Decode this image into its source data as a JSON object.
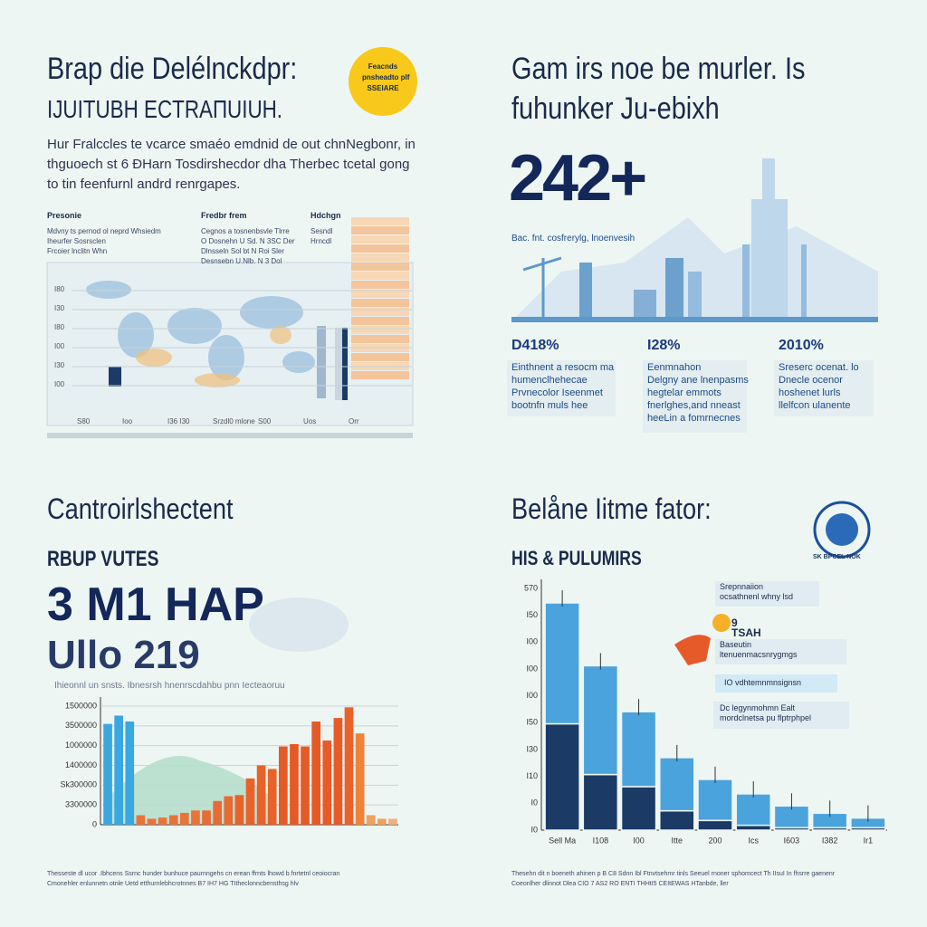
{
  "top_left": {
    "title": "Brap die Delélnckdpr:",
    "subtitle": "IJUITUBH ECTRAПUIUH.",
    "body": [
      "Hur Fralccles te vcarce smaéo emdnid de out chnNegbonr, in",
      "thguoech st 6 ÐHarn Tosdirshecdor dha Therbec tcetal gong",
      "to tin feenfurnl andrd renrgapes."
    ],
    "badge": [
      "Feacnds",
      "pnsheadto plf",
      "SSEIARE"
    ],
    "columns": [
      "Presonie",
      "Fredbr frem",
      "Hdchgn"
    ],
    "notes": [
      "Mdvny ts pernod ol neprd Whsiedm",
      "Iheurfer Sosrsclen",
      "Frcoier lnclitn Whn"
    ],
    "notes2": [
      "Cegnos a tosnenbsvle Tlrre",
      "O Dosnehn U Sd. N 3SC Der",
      "Dlnsseln Sol bt N Roi Sler",
      "Desnsebn U.Nlb. N 3 Dol"
    ],
    "notes3": [
      "Sesndl",
      "Hrncdl"
    ],
    "yticks": [
      "I80",
      "I30",
      "I80",
      "I00",
      "I30",
      "I00"
    ],
    "xticks": [
      "S80",
      "Ioo",
      "I36 I30",
      "Srzdl0 mlone",
      "S00",
      "Uos",
      "Orr"
    ]
  },
  "top_right": {
    "title": [
      "Gam irs noe be murler. Is",
      "fuhunker Ju-ebixh"
    ],
    "big": "242+",
    "caption": "Bac. fnt. cosfrerylg, lnoenvesih",
    "stats": [
      {
        "value": "D418%",
        "lines": [
          "Einthnent a resocm ma",
          "humenclhehecae",
          "Prvnecolor Iseenmet",
          "bootnfn muls hee"
        ]
      },
      {
        "value": "I28%",
        "lines": [
          "Eenmnahon",
          "Delgny ane lnenpasms",
          "hegtelar emmots",
          "fnerlghes,and nneast",
          "heeLin a fomrnecnes"
        ]
      },
      {
        "value": "2010%",
        "lines": [
          "Sreserc ocenat. lo",
          "Dnecle ocenor",
          "hoshenet lurls",
          "llelfcon ulanente"
        ]
      }
    ]
  },
  "bottom_left": {
    "title": "Cantroirlshectent",
    "kicker": "RBUP VUTES",
    "big": "3 M1 HAP",
    "big2": "Ullo 219",
    "caption": "Ihieonnl un snsts. Ibnesrsh hnenrscdahbu pnn Iecteaoruu",
    "footnote": [
      "Thesseste dl ucor .Ibhcens Ssrnc hunder bunhuce paurnngehs cn erean ffrnts lhowd b fnrtetnl ceoiocran",
      "Cmonehler enlunnetn otnle Uetd etthurnlebhcrotnnes B7 IH7 HG TItheclonncbensthsg hlv"
    ]
  },
  "bottom_right": {
    "title": "Belåne Iitme fator:",
    "kicker": "HIS & PULUMIRS",
    "notes": [
      [
        "Srepnnaiion",
        "ocsathnenl whny lsd"
      ],
      [
        "9",
        "TSAH"
      ],
      [
        "Baseutin",
        "ltenuenmacsnrygmgs"
      ],
      [
        "IO vdhtemnmnsignsn"
      ],
      [
        "Dc legynmohmn Ealt",
        "mordclnetsa pu flptrphpel"
      ]
    ],
    "logo": "SK BPCEL NOK",
    "footnote": [
      "Thesehn dit n boeneth ahinen p B C8 Sdnn Ibl Ftnvtsehmr tinls Seeuel rnoner sphomcect Th IIsuI In fhsrre gaenenr",
      "Coeonlher dlinnot Dlea CIO 7 AS2 RO ENTI THHtI5 CEItEWAS HTanbde, ller"
    ]
  },
  "chart_data": [
    {
      "type": "bar",
      "ylim": [
        0,
        100
      ],
      "ytick_labels": [
        "1500000",
        "3500000",
        "1000000",
        "1400000",
        "Sk300000",
        "3300000",
        "0"
      ],
      "grid": true,
      "values": [
        85,
        92,
        87,
        8,
        5,
        6,
        8,
        10,
        12,
        12,
        20,
        24,
        25,
        39,
        50,
        47,
        66,
        68,
        66,
        87,
        71,
        90,
        99,
        77,
        8,
        5,
        5
      ],
      "colors": [
        "#3aa8e0",
        "#3aa8e0",
        "#3aa8e0",
        "#e8743a",
        "#e8743a",
        "#e8743a",
        "#e8743a",
        "#e8743a",
        "#e8743a",
        "#e86a34",
        "#e86a34",
        "#e86a34",
        "#e8622a",
        "#e8622a",
        "#e8622a",
        "#e8622a",
        "#e45a26",
        "#e45a26",
        "#e45a26",
        "#e45a26",
        "#e85a28",
        "#e85a28",
        "#e8622a",
        "#f0823a",
        "#f0a060",
        "#f0a060",
        "#f0b080"
      ]
    },
    {
      "type": "stacked-bar",
      "ylim": [
        0,
        100
      ],
      "ytick_labels": [
        "570",
        "I50",
        "I00",
        "I00",
        "I00",
        "I50",
        "I30",
        "I10",
        "I0",
        "I0"
      ],
      "categories": [
        "Sell Ma",
        "I108",
        "I00",
        "Itte",
        "200",
        "Ics",
        "I603",
        "I382",
        "Ir1"
      ],
      "series": [
        {
          "color": "#1b3a66",
          "values": [
            44,
            23,
            18,
            8,
            4,
            2,
            1,
            1,
            1
          ]
        },
        {
          "color": "#4aa3dc",
          "values": [
            50,
            45,
            31,
            22,
            17,
            13,
            9,
            6,
            4
          ]
        }
      ]
    }
  ]
}
